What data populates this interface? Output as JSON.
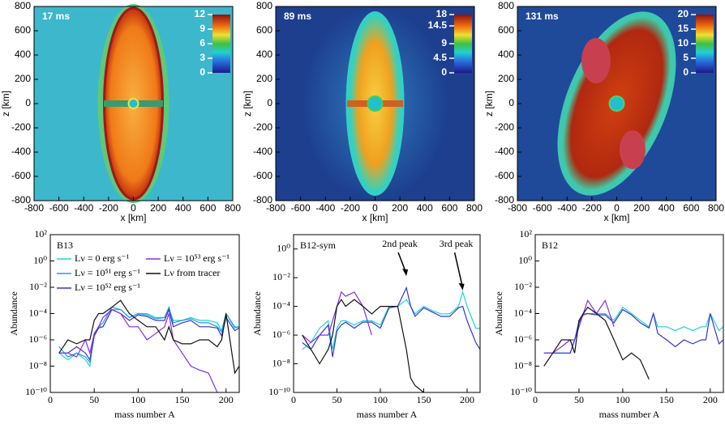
{
  "chart_data": [
    {
      "type": "image",
      "title": "17 ms",
      "xlabel": "x [km]",
      "ylabel": "z [km]",
      "xlim": [
        -800,
        800
      ],
      "ylim": [
        -800,
        800
      ],
      "xticks": [
        -800,
        -600,
        -400,
        -200,
        0,
        200,
        400,
        600,
        800
      ],
      "yticks": [
        -800,
        -600,
        -400,
        -200,
        0,
        200,
        400,
        600,
        800
      ],
      "clim": [
        0,
        12
      ],
      "cticks": [
        0,
        3,
        6,
        9,
        12
      ]
    },
    {
      "type": "image",
      "title": "89 ms",
      "xlabel": "x [km]",
      "ylabel": "z [km]",
      "xlim": [
        -800,
        800
      ],
      "ylim": [
        -800,
        800
      ],
      "xticks": [
        -800,
        -600,
        -400,
        -200,
        0,
        200,
        400,
        600,
        800
      ],
      "yticks": [
        -800,
        -600,
        -400,
        -200,
        0,
        200,
        400,
        600,
        800
      ],
      "clim": [
        0,
        18
      ],
      "cticks": [
        0,
        4.5,
        9,
        14.5,
        18
      ]
    },
    {
      "type": "image",
      "title": "131 ms",
      "xlabel": "x [km]",
      "ylabel": "z [km]",
      "xlim": [
        -800,
        800
      ],
      "ylim": [
        -800,
        800
      ],
      "xticks": [
        -800,
        -600,
        -400,
        -200,
        0,
        200,
        400,
        600,
        800
      ],
      "yticks": [
        -800,
        -600,
        -400,
        -200,
        0,
        200,
        400,
        600,
        800
      ],
      "clim": [
        0,
        20
      ],
      "cticks": [
        0,
        5,
        10,
        15,
        20
      ]
    },
    {
      "type": "line",
      "title": "B13",
      "xlabel": "mass number A",
      "ylabel": "Abundance",
      "log_y": true,
      "xlim": [
        0,
        215
      ],
      "ylim": [
        1e-10,
        100
      ],
      "xticks": [
        0,
        50,
        100,
        150,
        200
      ],
      "yticks": [
        {
          "value": 100,
          "label": "10²"
        },
        {
          "value": 1,
          "label": "10⁰"
        },
        {
          "value": 0.01,
          "label": "10⁻²"
        },
        {
          "value": 0.0001,
          "label": "10⁻⁴"
        },
        {
          "value": 1e-06,
          "label": "10⁻⁶"
        },
        {
          "value": 1e-08,
          "label": "10⁻⁸"
        },
        {
          "value": 1e-10,
          "label": "10⁻¹⁰"
        }
      ],
      "x": [
        10,
        20,
        30,
        40,
        45,
        50,
        55,
        60,
        70,
        80,
        90,
        100,
        110,
        120,
        130,
        135,
        140,
        150,
        160,
        170,
        180,
        190,
        195,
        200,
        210,
        215
      ],
      "series": [
        {
          "name": "Lν = 0 erg s⁻¹",
          "color": "#22d3d3",
          "values": [
            1e-07,
            3e-08,
            1e-07,
            3e-08,
            1e-08,
            3e-06,
            1e-05,
            1e-05,
            0.0002,
            0.0002,
            5e-05,
            0.0001,
            0.0001,
            5e-05,
            5e-05,
            0.0002,
            3e-05,
            3e-05,
            5e-05,
            3e-05,
            3e-05,
            2e-05,
            5e-06,
            0.0001,
            1e-05,
            1e-05
          ]
        },
        {
          "name": "Lν = 10⁵¹ erg s⁻¹",
          "color": "#1f9ee0",
          "values": [
            3e-07,
            5e-08,
            1e-07,
            5e-08,
            2e-08,
            2e-06,
            1e-05,
            2e-05,
            0.0003,
            0.0002,
            5e-05,
            0.0001,
            8e-05,
            4e-05,
            5e-05,
            0.0003,
            2e-05,
            3e-05,
            4e-05,
            2e-05,
            2e-05,
            1e-05,
            4e-06,
            0.0001,
            8e-06,
            1e-05
          ]
        },
        {
          "name": "Lν = 10⁵² erg s⁻¹",
          "color": "#3434d6",
          "values": [
            1e-07,
            1e-07,
            3e-07,
            1e-07,
            3e-08,
            2e-06,
            8e-06,
            1e-05,
            0.0002,
            0.0001,
            3e-05,
            8e-05,
            6e-05,
            3e-05,
            3e-05,
            0.0002,
            1e-05,
            2e-05,
            3e-05,
            1e-05,
            1e-05,
            8e-06,
            2e-06,
            5e-05,
            5e-06,
            8e-06
          ]
        },
        {
          "name": "Lν = 10⁵³ erg s⁻¹",
          "color": "#8a2be2",
          "values": [
            1e-07,
            1e-07,
            5e-08,
            1e-06,
            1e-07,
            3e-06,
            1e-05,
            5e-05,
            0.0002,
            0.0001,
            1e-05,
            1e-05,
            1e-06,
            3e-06,
            1e-05,
            0.0001,
            1e-06,
            1e-07,
            1e-08,
            5e-09,
            3e-09,
            1e-10,
            null,
            null,
            null,
            null
          ]
        },
        {
          "name": "Lν from tracer",
          "color": "#111111",
          "values": [
            1e-07,
            1e-06,
            5e-07,
            1e-06,
            1e-06,
            3e-05,
            0.0001,
            0.0001,
            0.0003,
            0.001,
            0.0001,
            3e-05,
            1e-05,
            1e-05,
            1e-06,
            1e-05,
            1e-06,
            5e-07,
            5e-07,
            1e-06,
            1e-06,
            3e-07,
            1e-06,
            0.0001,
            3e-09,
            1e-08
          ]
        }
      ]
    },
    {
      "type": "line",
      "title": "B12-sym",
      "xlabel": "mass number A",
      "ylabel": "Abundance",
      "log_y": true,
      "xlim": [
        0,
        215
      ],
      "ylim": [
        1e-10,
        10
      ],
      "xticks": [
        0,
        50,
        100,
        150,
        200
      ],
      "yticks": [
        {
          "value": 1,
          "label": "10⁰"
        },
        {
          "value": 0.01,
          "label": "10⁻²"
        },
        {
          "value": 0.0001,
          "label": "10⁻⁴"
        },
        {
          "value": 1e-06,
          "label": "10⁻⁶"
        },
        {
          "value": 1e-08,
          "label": "10⁻⁸"
        },
        {
          "value": 1e-10,
          "label": "10⁻¹⁰"
        }
      ],
      "x": [
        10,
        20,
        30,
        40,
        45,
        50,
        55,
        60,
        70,
        80,
        90,
        100,
        110,
        120,
        130,
        135,
        140,
        150,
        160,
        170,
        180,
        190,
        195,
        200,
        210,
        215
      ],
      "annotations": [
        {
          "text": "2nd peak",
          "x": 130,
          "y": 0.01
        },
        {
          "text": "3rd peak",
          "x": 195,
          "y": 0.001
        }
      ],
      "series": [
        {
          "color": "#22d3d3",
          "values": [
            1e-07,
            3e-07,
            3e-06,
            1e-05,
            1e-07,
            3e-06,
            1e-05,
            1e-05,
            5e-06,
            1e-05,
            1e-05,
            5e-06,
            0.0001,
            0.0001,
            0.0003,
            0.0001,
            3e-05,
            0.0001,
            5e-05,
            3e-05,
            3e-05,
            0.0001,
            0.001,
            0.0001,
            3e-06,
            3e-06
          ]
        },
        {
          "color": "#3434d6",
          "values": [
            3e-07,
            1e-07,
            1e-06,
            5e-06,
            3e-08,
            2e-06,
            5e-06,
            8e-06,
            3e-06,
            8e-06,
            8e-06,
            3e-06,
            8e-05,
            0.0001,
            0.002,
            0.0001,
            2e-05,
            8e-05,
            4e-05,
            2e-05,
            2e-05,
            8e-05,
            0.0001,
            1e-05,
            3e-07,
            1e-07
          ]
        },
        {
          "color": "#8a2be2",
          "values": [
            1e-06,
            3e-07,
            1e-06,
            1e-06,
            1e-05,
            0.0001,
            0.001,
            0.0005,
            0.001,
            0.0001,
            1e-06,
            null,
            null,
            null,
            null,
            null,
            null,
            null,
            null,
            null,
            null,
            null,
            null,
            null,
            null,
            null
          ]
        },
        {
          "color": "#111111",
          "values": [
            1e-06,
            1e-07,
            1e-08,
            1e-07,
            1e-06,
            0.0001,
            0.0003,
            0.0001,
            0.0003,
            0.0001,
            3e-05,
            0.0001,
            0.0001,
            0.0001,
            1e-07,
            1e-09,
            3e-10,
            1e-10,
            null,
            null,
            null,
            null,
            null,
            null,
            null,
            null
          ]
        }
      ]
    },
    {
      "type": "line",
      "title": "B12",
      "xlabel": "mass number A",
      "ylabel": "Abundance",
      "log_y": true,
      "xlim": [
        0,
        215
      ],
      "ylim": [
        1e-10,
        100
      ],
      "xticks": [
        0,
        50,
        100,
        150,
        200
      ],
      "yticks": [
        {
          "value": 100,
          "label": "10²"
        },
        {
          "value": 1,
          "label": "10⁰"
        },
        {
          "value": 0.01,
          "label": "10⁻²"
        },
        {
          "value": 0.0001,
          "label": "10⁻⁴"
        },
        {
          "value": 1e-06,
          "label": "10⁻⁶"
        },
        {
          "value": 1e-08,
          "label": "10⁻⁸"
        },
        {
          "value": 1e-10,
          "label": "10⁻¹⁰"
        }
      ],
      "x": [
        10,
        20,
        30,
        40,
        45,
        50,
        55,
        60,
        70,
        80,
        90,
        100,
        110,
        120,
        130,
        135,
        140,
        150,
        160,
        170,
        180,
        190,
        195,
        200,
        210,
        215
      ],
      "series": [
        {
          "color": "#22d3d3",
          "values": [
            1e-07,
            1e-07,
            1e-07,
            1e-07,
            1e-06,
            3e-05,
            0.0001,
            0.0001,
            0.0001,
            0.0001,
            3e-05,
            0.0003,
            0.0001,
            3e-05,
            1e-05,
            0.0001,
            1e-05,
            1e-05,
            5e-06,
            1e-05,
            5e-06,
            1e-05,
            1e-05,
            0.0001,
            5e-06,
            1e-05
          ]
        },
        {
          "color": "#3434d6",
          "values": [
            1e-07,
            1e-07,
            1e-07,
            1e-07,
            1e-06,
            2e-05,
            8e-05,
            0.0001,
            8e-05,
            8e-05,
            2e-05,
            0.0002,
            8e-05,
            2e-05,
            8e-06,
            0.0001,
            3e-06,
            1e-06,
            3e-07,
            1e-06,
            5e-07,
            1e-06,
            1e-06,
            0.0001,
            5e-07,
            1e-06
          ]
        },
        {
          "color": "#8a2be2",
          "values": [
            1e-07,
            1e-07,
            3e-07,
            1e-06,
            1e-06,
            1e-05,
            0.0001,
            0.001,
            0.0001,
            0.001,
            1e-05,
            null,
            null,
            null,
            null,
            null,
            null,
            null,
            null,
            null,
            null,
            null,
            null,
            null,
            null,
            null
          ]
        },
        {
          "color": "#111111",
          "values": [
            1e-08,
            1e-07,
            1e-06,
            1e-06,
            1e-07,
            3e-05,
            0.0001,
            0.0003,
            0.0001,
            3e-05,
            1e-06,
            3e-08,
            1e-07,
            3e-08,
            1e-09,
            null,
            null,
            null,
            null,
            null,
            null,
            null,
            null,
            null,
            null,
            null
          ]
        }
      ]
    }
  ]
}
